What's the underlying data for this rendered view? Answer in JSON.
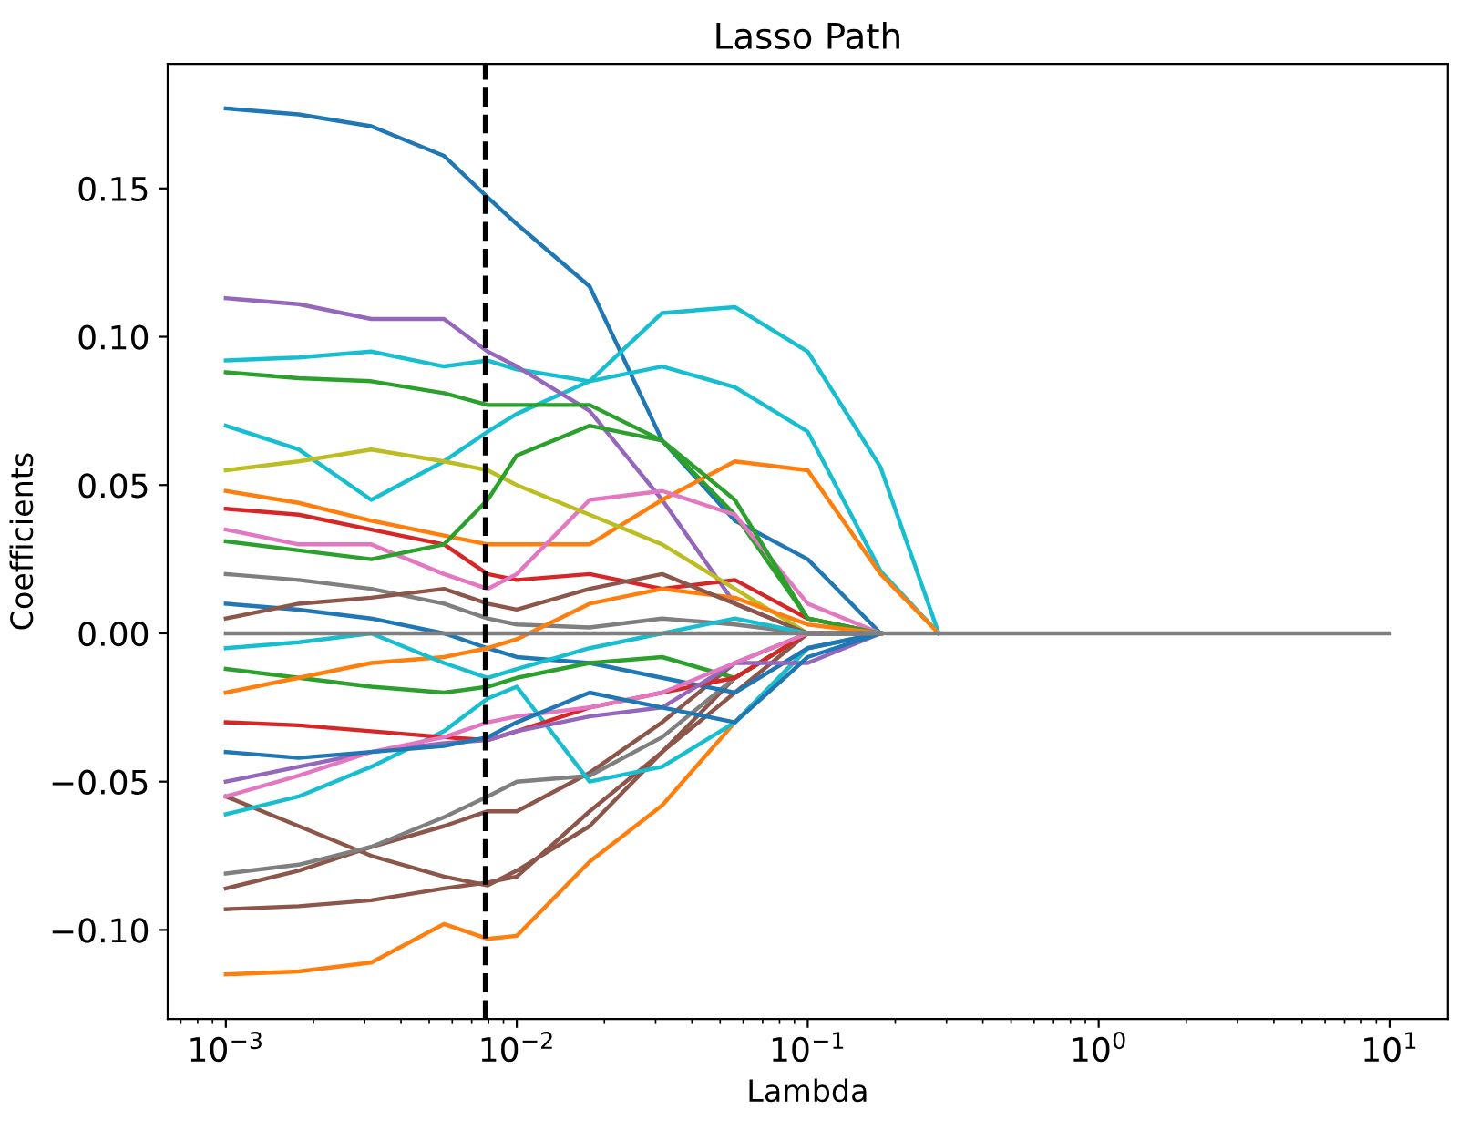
{
  "chart_data": {
    "type": "line",
    "title": "Lasso Path",
    "xlabel": "Lambda",
    "ylabel": "Coefficients",
    "log": "x",
    "grid": false,
    "legend": false,
    "x": [
      0.001,
      0.00178,
      0.00316,
      0.00562,
      0.00794,
      0.01,
      0.0178,
      0.0316,
      0.0562,
      0.1,
      0.178,
      0.282,
      10
    ],
    "xlim": [
      0.000631,
      15.85
    ],
    "ylim": [
      -0.13,
      0.192
    ],
    "xticks": [
      {
        "value": 0.001,
        "label": "10$^{−3}$"
      },
      {
        "value": 0.01,
        "label": "10$^{−2}$"
      },
      {
        "value": 0.1,
        "label": "10$^{−1}$"
      },
      {
        "value": 1,
        "label": "10$^{0}$"
      },
      {
        "value": 10,
        "label": "10$^{1}$"
      }
    ],
    "yticks": [
      {
        "value": -0.1,
        "label": "−0.10"
      },
      {
        "value": -0.05,
        "label": "−0.05"
      },
      {
        "value": 0,
        "label": "0.00"
      },
      {
        "value": 0.05,
        "label": "0.05"
      },
      {
        "value": 0.1,
        "label": "0.10"
      },
      {
        "value": 0.15,
        "label": "0.15"
      }
    ],
    "ref_lines": [
      {
        "axis": "x",
        "value": 0.0078,
        "color": "#000000",
        "line_style": "dashed"
      }
    ],
    "series": [
      {
        "color": "#1f77b4",
        "values": [
          0.177,
          0.175,
          0.171,
          0.161,
          0.147,
          0.138,
          0.117,
          0.065,
          0.038,
          0.025,
          0,
          null,
          null
        ]
      },
      {
        "color": "#17becf",
        "values": [
          0.092,
          0.093,
          0.095,
          0.09,
          0.092,
          0.089,
          0.085,
          0.108,
          0.11,
          0.095,
          0.056,
          0,
          null
        ]
      },
      {
        "color": "#17becf",
        "values": [
          0.07,
          0.062,
          0.045,
          0.058,
          0.068,
          0.074,
          0.085,
          0.09,
          0.083,
          0.068,
          0.021,
          0,
          null
        ]
      },
      {
        "color": "#9467bd",
        "values": [
          0.113,
          0.111,
          0.106,
          0.106,
          0.095,
          0.09,
          0.075,
          0.045,
          0.01,
          0,
          0,
          null,
          null
        ]
      },
      {
        "color": "#2ca02c",
        "values": [
          0.088,
          0.086,
          0.085,
          0.081,
          0.077,
          0.077,
          0.077,
          0.065,
          0.04,
          0.005,
          0,
          null,
          null
        ]
      },
      {
        "color": "#ff7f0e",
        "values": [
          0.048,
          0.044,
          0.038,
          0.033,
          0.03,
          0.03,
          0.03,
          0.045,
          0.058,
          0.055,
          0.02,
          0,
          null
        ]
      },
      {
        "color": "#ff7f0e",
        "values": [
          -0.115,
          -0.114,
          -0.111,
          -0.098,
          -0.103,
          -0.102,
          -0.077,
          -0.058,
          -0.03,
          -0.005,
          0,
          null,
          null
        ]
      },
      {
        "color": "#8c564b",
        "values": [
          -0.093,
          -0.092,
          -0.09,
          -0.086,
          -0.084,
          -0.082,
          -0.06,
          -0.04,
          -0.015,
          0,
          0,
          null,
          null
        ]
      },
      {
        "color": "#8c564b",
        "values": [
          -0.086,
          -0.08,
          -0.072,
          -0.065,
          -0.06,
          -0.06,
          -0.047,
          -0.03,
          -0.01,
          0,
          0,
          null,
          null
        ]
      },
      {
        "color": "#8c564b",
        "values": [
          -0.055,
          -0.065,
          -0.075,
          -0.082,
          -0.085,
          -0.08,
          -0.065,
          -0.04,
          -0.02,
          0,
          0,
          null,
          null
        ]
      },
      {
        "color": "#7f7f7f",
        "values": [
          -0.081,
          -0.078,
          -0.072,
          -0.062,
          -0.055,
          -0.05,
          -0.048,
          -0.035,
          -0.015,
          0,
          0,
          null,
          null
        ]
      },
      {
        "color": "#17becf",
        "values": [
          -0.061,
          -0.055,
          -0.045,
          -0.033,
          -0.022,
          -0.018,
          -0.05,
          -0.045,
          -0.03,
          -0.005,
          0,
          null,
          null
        ]
      },
      {
        "color": "#d62728",
        "values": [
          0.042,
          0.04,
          0.035,
          0.03,
          0.02,
          0.018,
          0.02,
          0.015,
          0.018,
          0.005,
          0,
          null,
          null
        ]
      },
      {
        "color": "#e377c2",
        "values": [
          0.035,
          0.03,
          0.03,
          0.02,
          0.015,
          0.02,
          0.045,
          0.048,
          0.04,
          0.01,
          0,
          null,
          null
        ]
      },
      {
        "color": "#bcbd22",
        "values": [
          0.055,
          0.058,
          0.062,
          0.058,
          0.055,
          0.05,
          0.04,
          0.03,
          0.015,
          0,
          0,
          null,
          null
        ]
      },
      {
        "color": "#2ca02c",
        "values": [
          0.031,
          0.028,
          0.025,
          0.03,
          0.045,
          0.06,
          0.07,
          0.065,
          0.045,
          0.005,
          0,
          null,
          null
        ]
      },
      {
        "color": "#7f7f7f",
        "values": [
          0.02,
          0.018,
          0.015,
          0.01,
          0.005,
          0.003,
          0.002,
          0.005,
          0.003,
          0,
          0,
          null,
          null
        ]
      },
      {
        "color": "#1f77b4",
        "values": [
          0.01,
          0.008,
          0.005,
          0,
          -0.005,
          -0.008,
          -0.01,
          -0.015,
          -0.02,
          -0.005,
          0,
          null,
          null
        ]
      },
      {
        "color": "#2ca02c",
        "values": [
          -0.012,
          -0.015,
          -0.018,
          -0.02,
          -0.018,
          -0.015,
          -0.01,
          -0.008,
          -0.015,
          0,
          0,
          null,
          null
        ]
      },
      {
        "color": "#ff7f0e",
        "values": [
          -0.02,
          -0.015,
          -0.01,
          -0.008,
          -0.005,
          -0.002,
          0.01,
          0.015,
          0.012,
          0.003,
          0,
          null,
          null
        ]
      },
      {
        "color": "#d62728",
        "values": [
          -0.03,
          -0.031,
          -0.033,
          -0.035,
          -0.036,
          -0.033,
          -0.025,
          -0.02,
          -0.015,
          0,
          0,
          null,
          null
        ]
      },
      {
        "color": "#9467bd",
        "values": [
          -0.05,
          -0.045,
          -0.04,
          -0.037,
          -0.036,
          -0.033,
          -0.028,
          -0.025,
          -0.01,
          -0.01,
          0,
          null,
          null
        ]
      },
      {
        "color": "#e377c2",
        "values": [
          -0.055,
          -0.048,
          -0.04,
          -0.035,
          -0.03,
          -0.028,
          -0.025,
          -0.02,
          -0.01,
          0,
          0,
          null,
          null
        ]
      },
      {
        "color": "#1f77b4",
        "values": [
          -0.04,
          -0.042,
          -0.04,
          -0.038,
          -0.035,
          -0.03,
          -0.02,
          -0.025,
          -0.03,
          -0.008,
          0,
          null,
          null
        ]
      },
      {
        "color": "#8c564b",
        "values": [
          0.005,
          0.01,
          0.012,
          0.015,
          0.01,
          0.008,
          0.015,
          0.02,
          0.01,
          0,
          0,
          null,
          null
        ]
      },
      {
        "color": "#17becf",
        "values": [
          -0.005,
          -0.003,
          0,
          -0.01,
          -0.015,
          -0.012,
          -0.005,
          0,
          0.005,
          0,
          0,
          null,
          null
        ]
      },
      {
        "color": "#7f7f7f",
        "values": [
          0,
          0,
          0,
          0,
          0,
          0,
          0,
          0,
          0,
          0,
          0,
          0,
          0
        ]
      }
    ]
  }
}
